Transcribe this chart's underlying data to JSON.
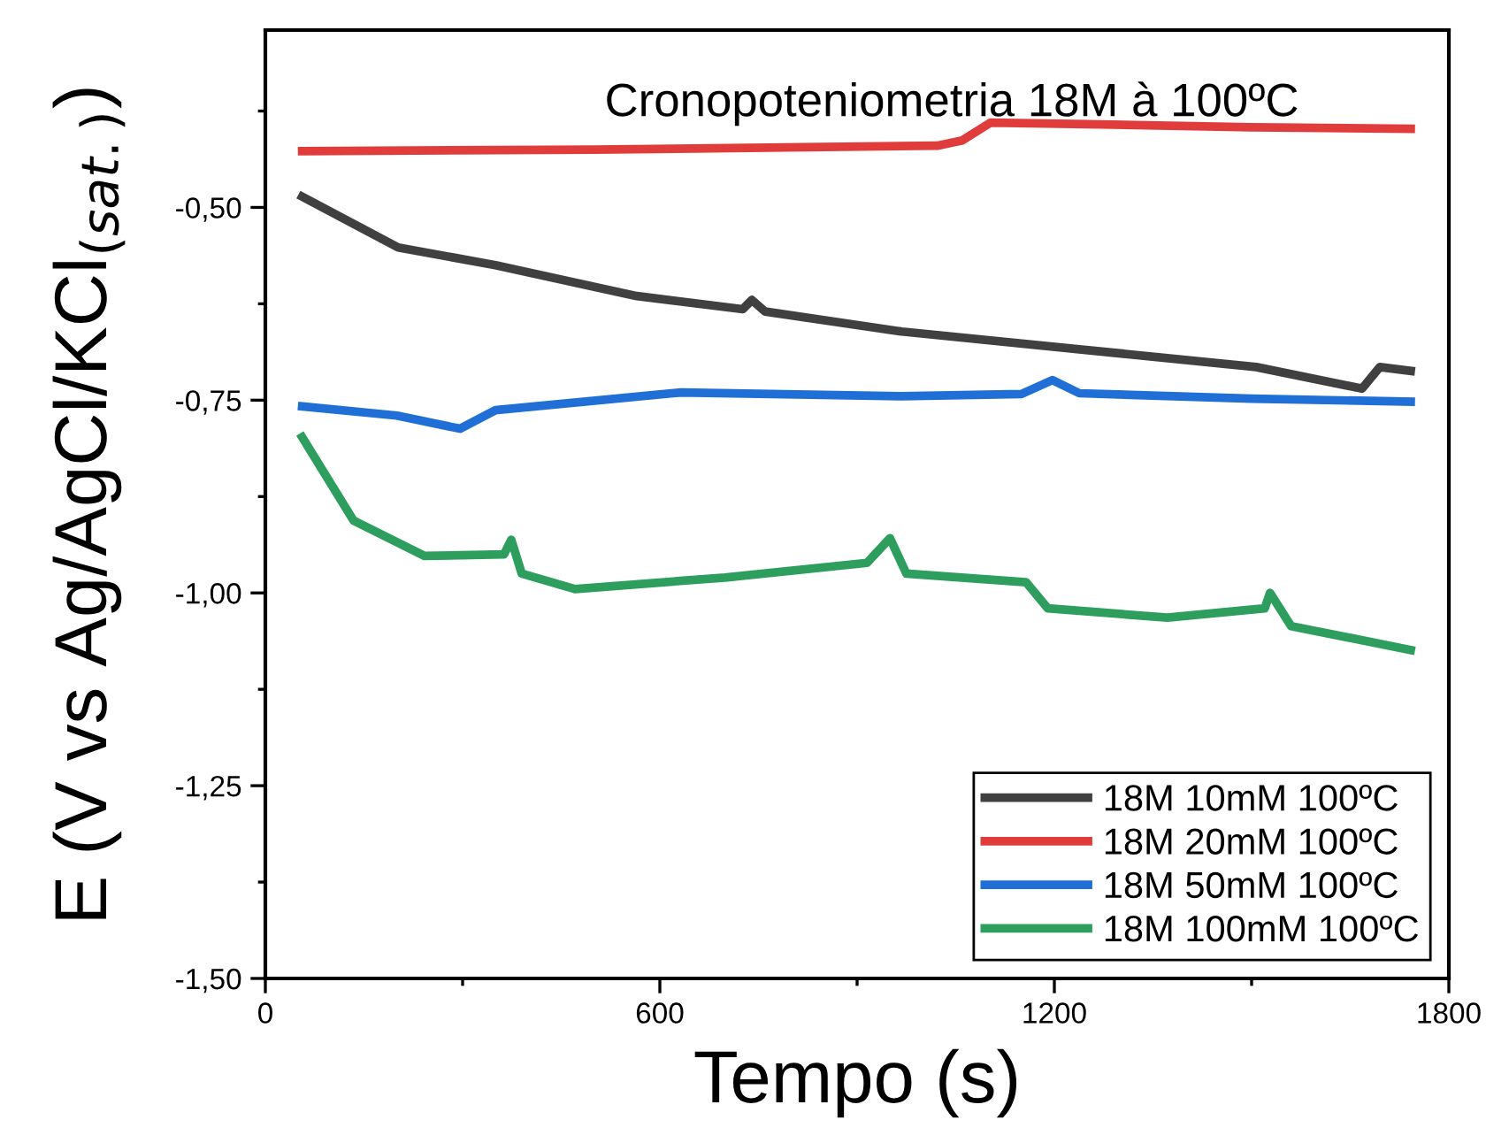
{
  "chart_data": {
    "type": "line",
    "title": "Cronopoteniometria 18M à 100ºC",
    "xlabel": "Tempo (s)",
    "ylabel": "E (V vs Ag/AgCl/KCl$_{(sat.)}$)",
    "xlim": [
      0,
      1800
    ],
    "xticks": [
      0,
      600,
      1200,
      1800
    ],
    "ylim": [
      -1.5,
      -0.27
    ],
    "yticks": [
      {
        "value": -1.5,
        "label": "-1,50"
      },
      {
        "value": -1.25,
        "label": "-1,25"
      },
      {
        "value": -1.0,
        "label": "-1,00"
      },
      {
        "value": -0.75,
        "label": "-0,75"
      },
      {
        "value": -0.5,
        "label": "-0,50"
      }
    ],
    "grid": false,
    "legend": "bottom right",
    "marker": "none",
    "line_style": "solid",
    "series": [
      {
        "name": "18M 10mM 100ºC",
        "color": "#404040",
        "x": [
          56,
          202,
          350,
          565,
          726,
          740,
          760,
          968,
          1238,
          1507,
          1668,
          1695,
          1742
        ],
        "values": [
          -0.486,
          -0.552,
          -0.575,
          -0.615,
          -0.632,
          -0.62,
          -0.635,
          -0.661,
          -0.684,
          -0.707,
          -0.735,
          -0.707,
          -0.712
        ]
      },
      {
        "name": "18M 20mM 100ºC",
        "color": "#e03c3c",
        "x": [
          56,
          500,
          1022,
          1060,
          1103,
          1250,
          1500,
          1742
        ],
        "values": [
          -0.427,
          -0.425,
          -0.42,
          -0.413,
          -0.39,
          -0.392,
          -0.396,
          -0.398
        ]
      },
      {
        "name": "18M 50mM 100ºC",
        "color": "#1f6fd6",
        "x": [
          56,
          200,
          296,
          350,
          632,
          968,
          1150,
          1197,
          1238,
          1500,
          1742
        ],
        "values": [
          -0.758,
          -0.77,
          -0.787,
          -0.763,
          -0.74,
          -0.745,
          -0.742,
          -0.724,
          -0.741,
          -0.748,
          -0.752
        ]
      },
      {
        "name": "18M 100mM 100ºC",
        "color": "#2e9e5e",
        "x": [
          56,
          134,
          242,
          363,
          374,
          390,
          471,
          699,
          915,
          950,
          975,
          1157,
          1190,
          1372,
          1520,
          1528,
          1560,
          1742
        ],
        "values": [
          -0.798,
          -0.906,
          -0.952,
          -0.95,
          -0.931,
          -0.975,
          -0.995,
          -0.98,
          -0.961,
          -0.929,
          -0.975,
          -0.986,
          -1.02,
          -1.032,
          -1.02,
          -1.0,
          -1.043,
          -1.074
        ]
      }
    ]
  }
}
